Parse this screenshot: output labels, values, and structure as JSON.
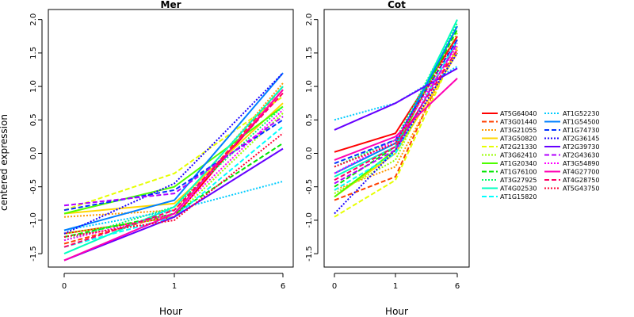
{
  "chart_data": [
    {
      "type": "line",
      "title": "Mer",
      "xlabel": "Hour",
      "ylabel": "centered expression",
      "x": [
        "0",
        "1",
        "6"
      ],
      "ylim": [
        -1.7,
        2.15
      ],
      "yticks": [
        "-1.5",
        "-1.0",
        "-0.5",
        "0.0",
        "0.5",
        "1.0",
        "1.5",
        "2.0"
      ],
      "series": [
        {
          "name": "AT5G64040",
          "values": [
            -1.2,
            -0.95,
            0.95
          ]
        },
        {
          "name": "AT3G01440",
          "values": [
            -1.35,
            -0.9,
            1.0
          ]
        },
        {
          "name": "AT3G21055",
          "values": [
            -0.95,
            -0.85,
            1.05
          ]
        },
        {
          "name": "AT3G50820",
          "values": [
            -0.9,
            -0.75,
            0.75
          ]
        },
        {
          "name": "AT2G21330",
          "values": [
            -0.85,
            -0.3,
            0.85
          ]
        },
        {
          "name": "AT3G62410",
          "values": [
            -1.2,
            -0.95,
            0.6
          ]
        },
        {
          "name": "AT1G20340",
          "values": [
            -0.9,
            -0.5,
            0.7
          ]
        },
        {
          "name": "AT1G76100",
          "values": [
            -1.25,
            -0.9,
            0.15
          ]
        },
        {
          "name": "AT3G27925",
          "values": [
            -1.3,
            -0.8,
            0.7
          ]
        },
        {
          "name": "AT4G02530",
          "values": [
            -1.5,
            -0.8,
            1.0
          ]
        },
        {
          "name": "AT1G15820",
          "values": [
            -1.4,
            -0.95,
            0.4
          ]
        },
        {
          "name": "AT1G52230",
          "values": [
            -1.15,
            -0.85,
            -0.42
          ]
        },
        {
          "name": "AT1G54500",
          "values": [
            -1.15,
            -0.7,
            1.2
          ]
        },
        {
          "name": "AT1G74730",
          "values": [
            -0.85,
            -0.55,
            0.5
          ]
        },
        {
          "name": "AT2G36145",
          "values": [
            -1.2,
            -0.45,
            1.2
          ]
        },
        {
          "name": "AT2G39730",
          "values": [
            -1.6,
            -0.95,
            0.07
          ]
        },
        {
          "name": "AT2G43630",
          "values": [
            -0.78,
            -0.6,
            0.55
          ]
        },
        {
          "name": "AT3G54890",
          "values": [
            -1.3,
            -0.9,
            0.65
          ]
        },
        {
          "name": "AT4G27700",
          "values": [
            -1.6,
            -0.9,
            0.95
          ]
        },
        {
          "name": "AT4G28750",
          "values": [
            -1.4,
            -0.85,
            0.9
          ]
        },
        {
          "name": "AT5G43750",
          "values": [
            -1.25,
            -1.0,
            0.3
          ]
        }
      ]
    },
    {
      "type": "line",
      "title": "Cot",
      "xlabel": "Hour",
      "x": [
        "0",
        "1",
        "6"
      ],
      "ylim": [
        -1.7,
        2.15
      ],
      "yticks": [
        "-1.5",
        "-1.0",
        "-0.5",
        "0.0",
        "0.5",
        "1.0",
        "1.5",
        "2.0"
      ],
      "series": [
        {
          "name": "AT5G64040",
          "values": [
            0.02,
            0.3,
            1.75
          ]
        },
        {
          "name": "AT3G01440",
          "values": [
            -0.7,
            -0.35,
            1.7
          ]
        },
        {
          "name": "AT3G21055",
          "values": [
            -0.55,
            -0.2,
            1.55
          ]
        },
        {
          "name": "AT3G50820",
          "values": [
            -0.65,
            0.0,
            1.5
          ]
        },
        {
          "name": "AT2G21330",
          "values": [
            -0.95,
            -0.4,
            1.6
          ]
        },
        {
          "name": "AT3G62410",
          "values": [
            -0.6,
            -0.1,
            1.8
          ]
        },
        {
          "name": "AT1G20340",
          "values": [
            -0.65,
            0.05,
            1.9
          ]
        },
        {
          "name": "AT1G76100",
          "values": [
            -0.5,
            0.1,
            1.85
          ]
        },
        {
          "name": "AT3G27925",
          "values": [
            -0.2,
            0.2,
            1.95
          ]
        },
        {
          "name": "AT4G02530",
          "values": [
            -0.35,
            0.1,
            2.0
          ]
        },
        {
          "name": "AT1G15820",
          "values": [
            -0.55,
            0.0,
            1.7
          ]
        },
        {
          "name": "AT1G52230",
          "values": [
            0.5,
            0.75,
            1.3
          ]
        },
        {
          "name": "AT1G54500",
          "values": [
            -0.3,
            0.15,
            1.9
          ]
        },
        {
          "name": "AT1G74730",
          "values": [
            -0.15,
            0.2,
            1.7
          ]
        },
        {
          "name": "AT2G36145",
          "values": [
            -0.9,
            0.05,
            1.5
          ]
        },
        {
          "name": "AT2G39730",
          "values": [
            0.35,
            0.75,
            1.27
          ]
        },
        {
          "name": "AT2G43630",
          "values": [
            -0.45,
            0.05,
            1.65
          ]
        },
        {
          "name": "AT3G54890",
          "values": [
            -0.3,
            0.2,
            1.6
          ]
        },
        {
          "name": "AT4G27700",
          "values": [
            -0.1,
            0.25,
            1.12
          ]
        },
        {
          "name": "AT4G28750",
          "values": [
            -0.4,
            0.1,
            1.55
          ]
        },
        {
          "name": "AT5G43750",
          "values": [
            -0.2,
            0.15,
            1.75
          ]
        }
      ]
    }
  ],
  "legend": {
    "placement": "right",
    "entries": [
      {
        "name": "AT5G64040",
        "color": "#ff0000",
        "dash": "solid"
      },
      {
        "name": "AT3G01440",
        "color": "#ff4000",
        "dash": "dashed"
      },
      {
        "name": "AT3G21055",
        "color": "#ff9900",
        "dash": "dotted"
      },
      {
        "name": "AT3G50820",
        "color": "#ffd700",
        "dash": "solid"
      },
      {
        "name": "AT2G21330",
        "color": "#e6ff00",
        "dash": "dashed"
      },
      {
        "name": "AT3G62410",
        "color": "#99ff00",
        "dash": "dotted"
      },
      {
        "name": "AT1G20340",
        "color": "#4dff00",
        "dash": "solid"
      },
      {
        "name": "AT1G76100",
        "color": "#00e600",
        "dash": "dashed"
      },
      {
        "name": "AT3G27925",
        "color": "#00ff66",
        "dash": "dotted"
      },
      {
        "name": "AT4G02530",
        "color": "#00ffbf",
        "dash": "solid"
      },
      {
        "name": "AT1G15820",
        "color": "#00ffff",
        "dash": "dashed"
      },
      {
        "name": "AT1G52230",
        "color": "#00ccff",
        "dash": "dotted"
      },
      {
        "name": "AT1G54500",
        "color": "#0080ff",
        "dash": "solid"
      },
      {
        "name": "AT1G74730",
        "color": "#0033ff",
        "dash": "dashed"
      },
      {
        "name": "AT2G36145",
        "color": "#1a00ff",
        "dash": "dotted"
      },
      {
        "name": "AT2G39730",
        "color": "#6600ff",
        "dash": "solid"
      },
      {
        "name": "AT2G43630",
        "color": "#b300ff",
        "dash": "dashed"
      },
      {
        "name": "AT3G54890",
        "color": "#ff00ff",
        "dash": "dotted"
      },
      {
        "name": "AT4G27700",
        "color": "#ff00b3",
        "dash": "solid"
      },
      {
        "name": "AT4G28750",
        "color": "#ff0066",
        "dash": "dashed"
      },
      {
        "name": "AT5G43750",
        "color": "#ff0033",
        "dash": "dotted"
      }
    ]
  }
}
